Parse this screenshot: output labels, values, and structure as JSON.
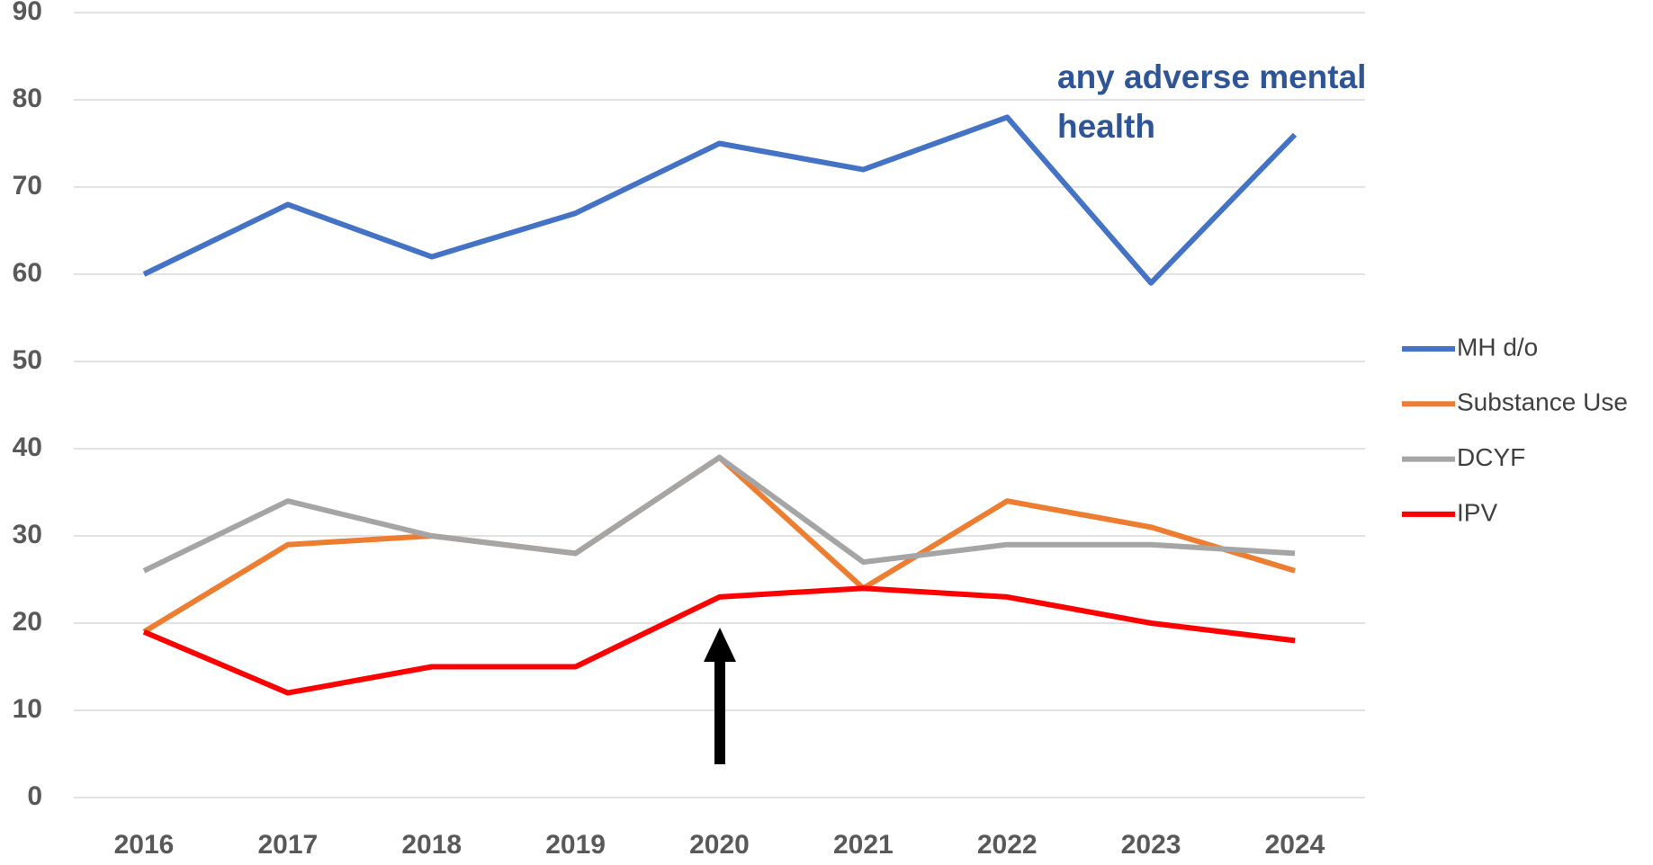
{
  "chart_data": {
    "type": "line",
    "categories": [
      "2016",
      "2017",
      "2018",
      "2019",
      "2020",
      "2021",
      "2022",
      "2023",
      "2024"
    ],
    "series": [
      {
        "name": "MH d/o",
        "color": "#4472c4",
        "values": [
          60,
          68,
          62,
          67,
          75,
          72,
          78,
          59,
          76
        ]
      },
      {
        "name": "Substance Use",
        "color": "#ed7d31",
        "values": [
          19,
          29,
          30,
          28,
          39,
          24,
          34,
          31,
          26
        ]
      },
      {
        "name": "DCYF",
        "color": "#a5a5a5",
        "values": [
          26,
          34,
          30,
          28,
          39,
          27,
          29,
          29,
          28
        ]
      },
      {
        "name": "IPV",
        "color": "#ff0000",
        "values": [
          19,
          12,
          15,
          15,
          23,
          24,
          23,
          20,
          18
        ]
      }
    ],
    "annotation": [
      "any adverse mental",
      "health"
    ],
    "annotation_color": "#2f5597",
    "ylim": [
      0,
      90
    ],
    "yticks": [
      0,
      10,
      20,
      30,
      40,
      50,
      60,
      70,
      80,
      90
    ],
    "grid": true,
    "legend": "right"
  }
}
